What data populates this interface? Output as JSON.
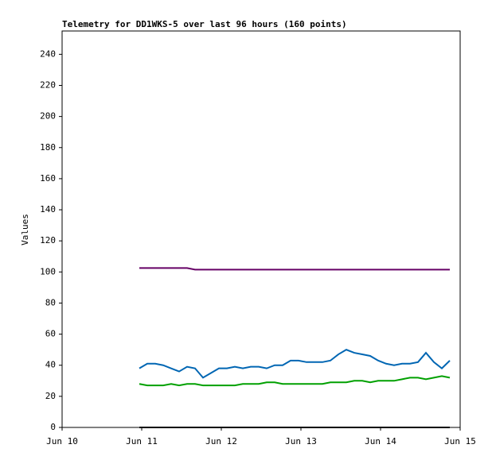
{
  "chart_data": {
    "type": "line",
    "title": "Telemetry for DD1WKS-5 over last 96 hours (160 points)",
    "y_label": "Values",
    "x": [
      10.97,
      11.07,
      11.17,
      11.27,
      11.37,
      11.47,
      11.57,
      11.67,
      11.77,
      11.87,
      11.97,
      12.07,
      12.17,
      12.27,
      12.37,
      12.47,
      12.57,
      12.67,
      12.77,
      12.87,
      12.97,
      13.07,
      13.17,
      13.27,
      13.37,
      13.47,
      13.57,
      13.67,
      13.77,
      13.87,
      13.97,
      14.07,
      14.17,
      14.27,
      14.37,
      14.47,
      14.57,
      14.67,
      14.77,
      14.87
    ],
    "series": [
      {
        "color": "#660066",
        "values": [
          102.5,
          102.5,
          102.5,
          102.5,
          102.5,
          102.5,
          102.5,
          101.5,
          101.5,
          101.5,
          101.5,
          101.5,
          101.5,
          101.5,
          101.5,
          101.5,
          101.5,
          101.5,
          101.5,
          101.5,
          101.5,
          101.5,
          101.5,
          101.5,
          101.5,
          101.5,
          101.5,
          101.5,
          101.5,
          101.5,
          101.5,
          101.5,
          101.5,
          101.5,
          101.5,
          101.5,
          101.5,
          101.5,
          101.5,
          101.5
        ]
      },
      {
        "color": "#0066b3",
        "values": [
          38,
          41,
          41,
          40,
          38,
          36,
          39,
          38,
          32,
          35,
          38,
          38,
          39,
          38,
          39,
          39,
          38,
          40,
          40,
          43,
          43,
          42,
          42,
          42,
          43,
          47,
          50,
          48,
          47,
          46,
          43,
          41,
          40,
          41,
          41,
          42,
          48,
          42,
          38,
          43
        ]
      },
      {
        "color": "#00a000",
        "values": [
          28,
          27,
          27,
          27,
          28,
          27,
          28,
          28,
          27,
          27,
          27,
          27,
          27,
          28,
          28,
          28,
          29,
          29,
          28,
          28,
          28,
          28,
          28,
          28,
          29,
          29,
          29,
          30,
          30,
          29,
          30,
          30,
          30,
          31,
          32,
          32,
          31,
          32,
          33,
          32
        ]
      },
      {
        "color": "#000000",
        "values": [
          0,
          0,
          0,
          0,
          0,
          0,
          0,
          0,
          0,
          0,
          0,
          0,
          0,
          0,
          0,
          0,
          0,
          0,
          0,
          0,
          0,
          0,
          0,
          0,
          0,
          0,
          0,
          0,
          0,
          0,
          0,
          0,
          0,
          0,
          0,
          0,
          0,
          0,
          0,
          0
        ]
      }
    ],
    "xlim": [
      10,
      15
    ],
    "xticks": [
      {
        "value": 10,
        "label": "Jun 10"
      },
      {
        "value": 11,
        "label": "Jun 11"
      },
      {
        "value": 12,
        "label": "Jun 12"
      },
      {
        "value": 13,
        "label": "Jun 13"
      },
      {
        "value": 14,
        "label": "Jun 14"
      },
      {
        "value": 15,
        "label": "Jun 15"
      }
    ],
    "ylim": [
      0,
      255
    ],
    "yticks": [
      0,
      20,
      40,
      60,
      80,
      100,
      120,
      140,
      160,
      180,
      200,
      220,
      240
    ]
  }
}
